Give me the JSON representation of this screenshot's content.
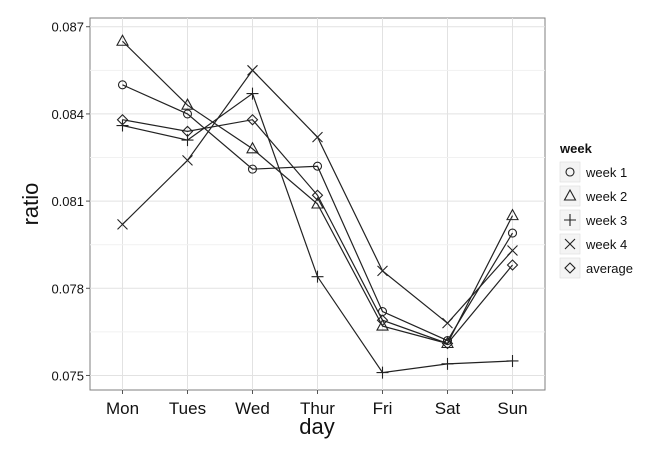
{
  "chart_data": {
    "type": "line",
    "xlabel": "day",
    "ylabel": "ratio",
    "categories": [
      "Mon",
      "Tues",
      "Wed",
      "Thur",
      "Fri",
      "Sat",
      "Sun"
    ],
    "ylim": [
      0.0745,
      0.0873
    ],
    "yticks": [
      "0.075",
      "0.078",
      "0.081",
      "0.084",
      "0.087"
    ],
    "grid": true,
    "legend_position": "right",
    "legend_title": "week",
    "line_color": "#222222",
    "series": [
      {
        "name": "week 1",
        "marker": "circle",
        "values": [
          0.085,
          0.084,
          0.0821,
          0.0822,
          0.0772,
          0.0762,
          0.0799
        ]
      },
      {
        "name": "week 2",
        "marker": "triangle",
        "values": [
          0.0865,
          0.0843,
          0.0828,
          0.0809,
          0.0767,
          0.0761,
          0.0805
        ]
      },
      {
        "name": "week 3",
        "marker": "plus",
        "values": [
          0.0836,
          0.0831,
          0.0847,
          0.0784,
          0.0751,
          0.0754,
          0.0755
        ]
      },
      {
        "name": "week 4",
        "marker": "cross",
        "values": [
          0.0802,
          0.0824,
          0.0855,
          0.0832,
          0.0786,
          0.0768,
          0.0793
        ]
      },
      {
        "name": "average",
        "marker": "diamond",
        "values": [
          0.0838,
          0.0834,
          0.0838,
          0.0812,
          0.0769,
          0.0761,
          0.0788
        ]
      }
    ]
  }
}
